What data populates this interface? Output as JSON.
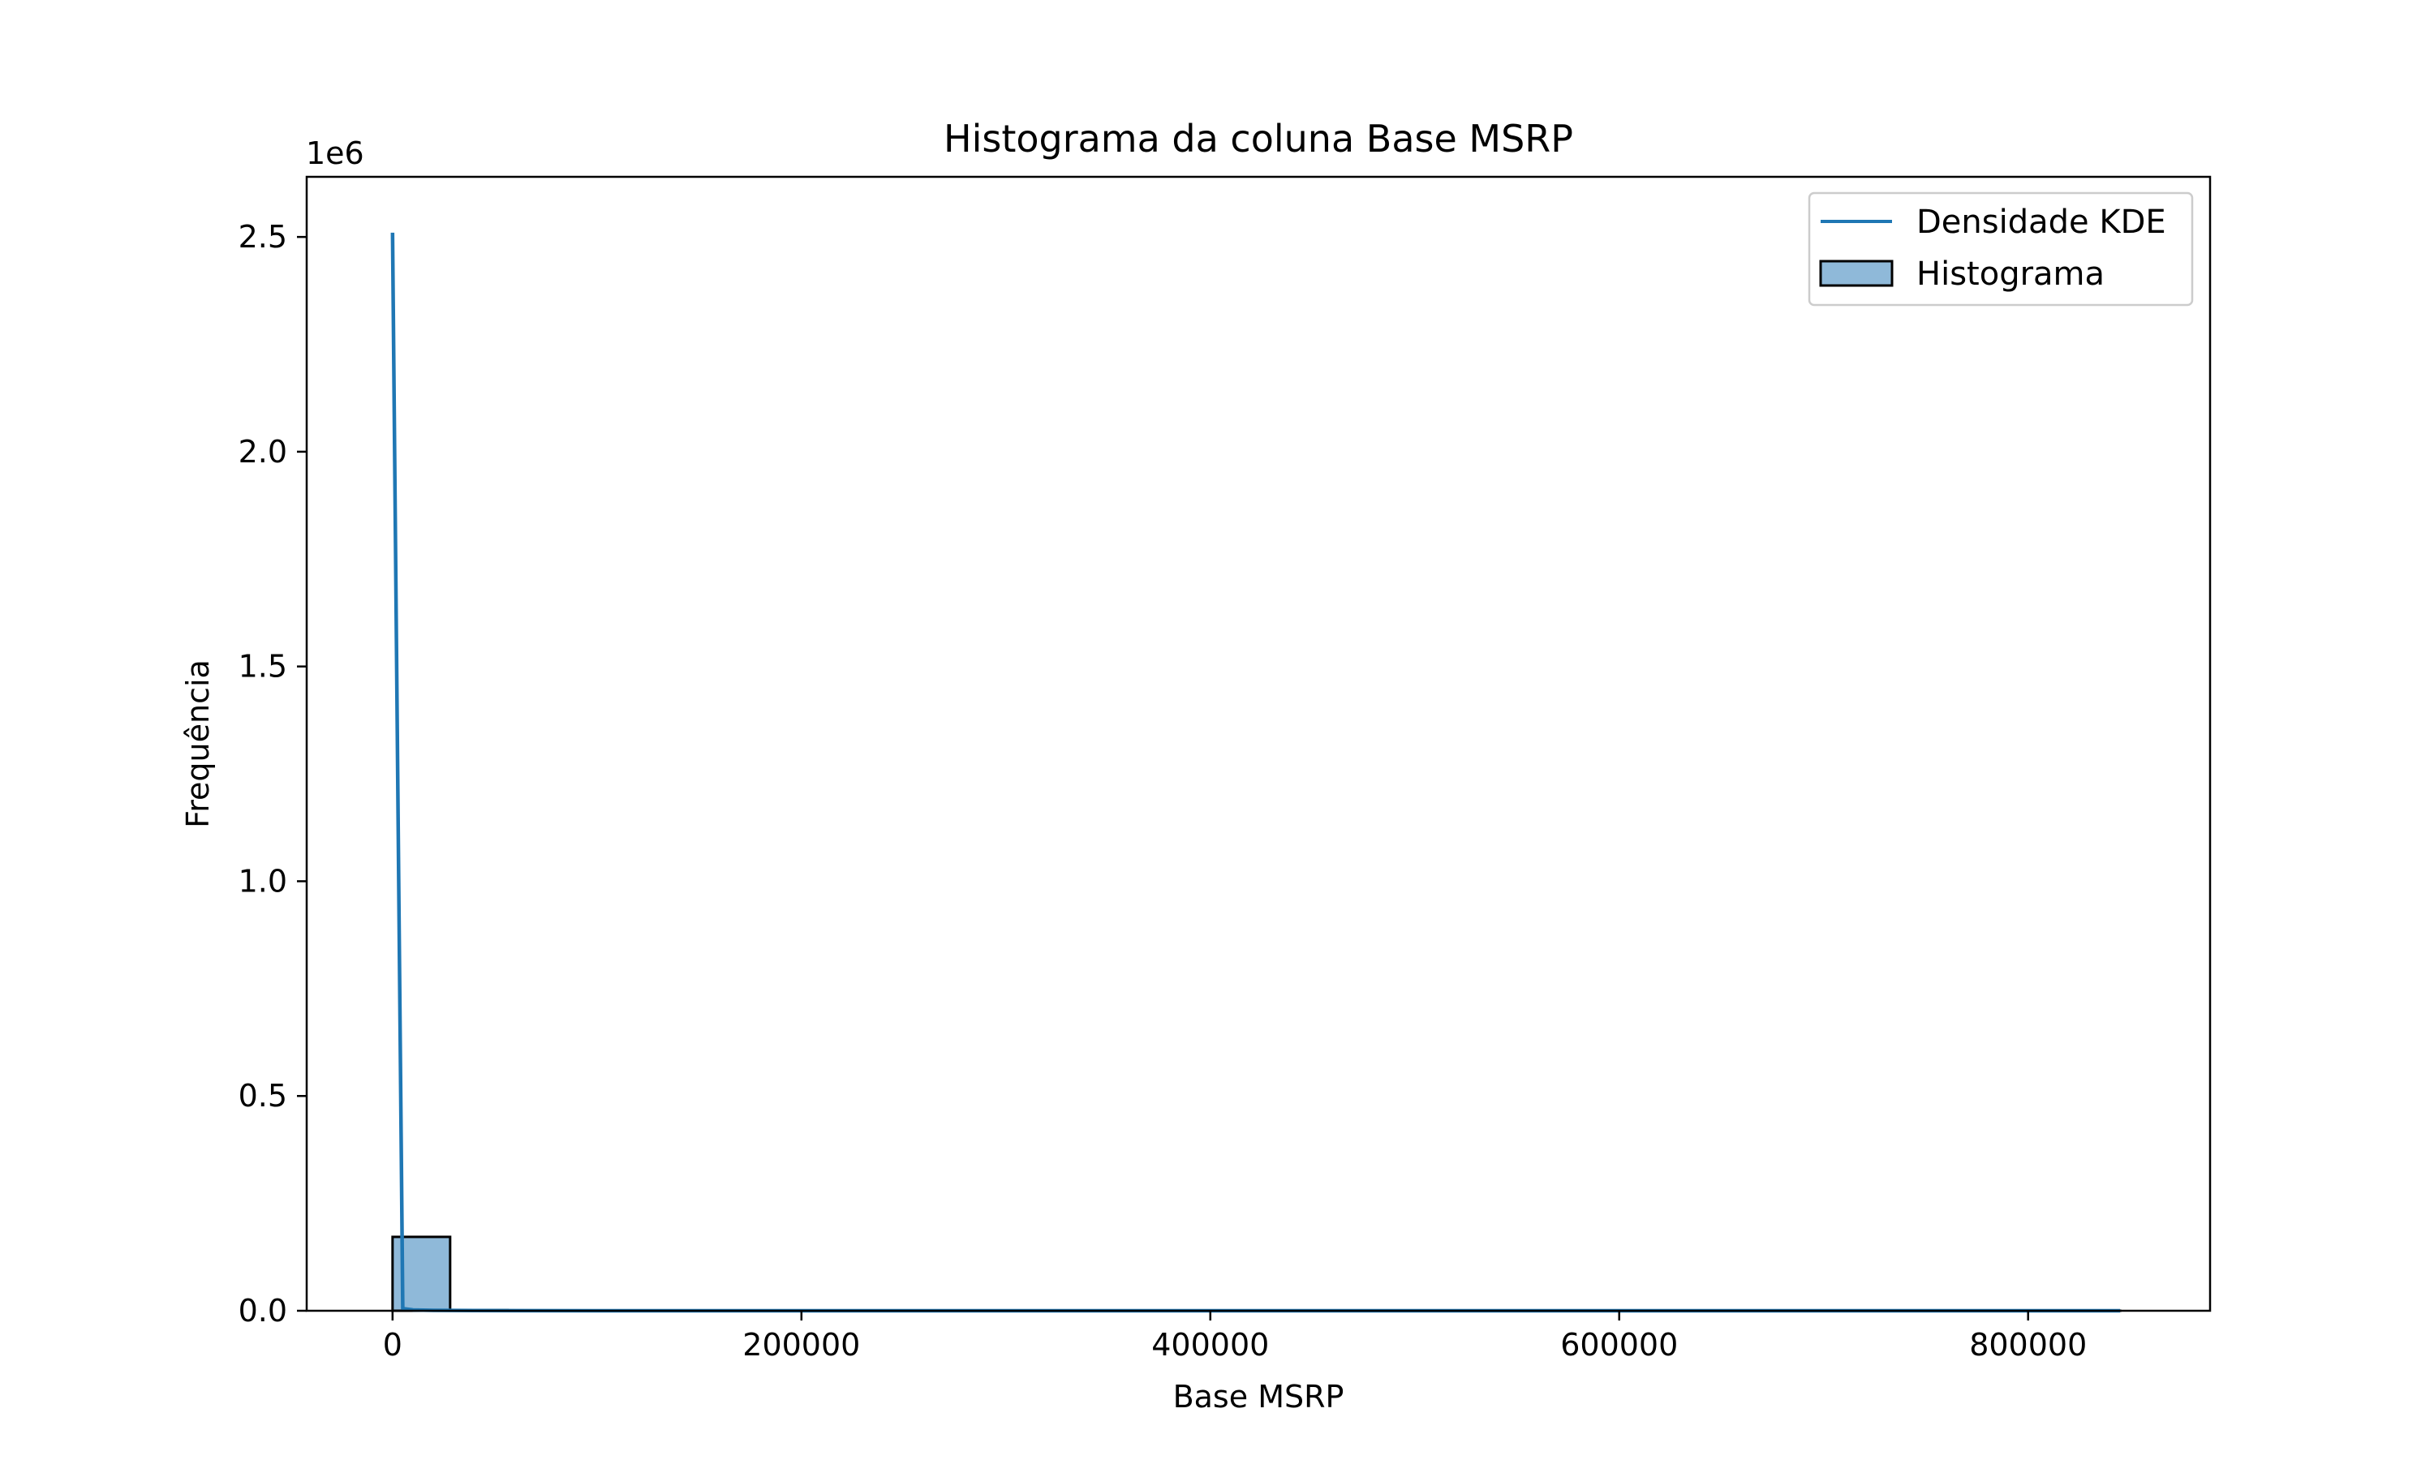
{
  "chart_data": {
    "type": "bar",
    "title": "Histograma da coluna Base MSRP",
    "xlabel": "Base MSRP",
    "ylabel": "Frequência",
    "y_offset_label": "1e6",
    "xlim": [
      -42000,
      889000
    ],
    "ylim": [
      0,
      2640000
    ],
    "x_ticks": [
      0,
      200000,
      400000,
      600000,
      800000
    ],
    "x_tick_labels": [
      "0",
      "200000",
      "400000",
      "600000",
      "800000"
    ],
    "y_ticks": [
      0,
      500000,
      1000000,
      1500000,
      2000000,
      2500000
    ],
    "y_tick_labels": [
      "0.0",
      "0.5",
      "1.0",
      "1.5",
      "2.0",
      "2.5"
    ],
    "grid": false,
    "legend_position": "upper right",
    "series": [
      {
        "name": "Densidade KDE",
        "type": "line",
        "color": "#1f77b4",
        "x": [
          0,
          5000,
          10000,
          20000,
          40000,
          60000,
          100000,
          200000,
          400000,
          600000,
          845000
        ],
        "y": [
          2510000,
          5000,
          2000,
          1000,
          500,
          300,
          100,
          50,
          20,
          10,
          0
        ]
      },
      {
        "name": "Histograma",
        "type": "bar",
        "color": "#8fb9d9",
        "edge_color": "#000000",
        "bin_edges": [
          0,
          28167,
          56333,
          84500,
          112667,
          140833,
          169000,
          197167,
          225333,
          253500,
          281667,
          309833,
          338000,
          366167,
          394333,
          422500,
          450667,
          478833,
          507000,
          535167,
          563333,
          591500,
          619667,
          647833,
          676000,
          704167,
          732333,
          760500,
          788667,
          816833,
          845000
        ],
        "counts": [
          172000,
          1500,
          800,
          300,
          100,
          50,
          20,
          10,
          10,
          5,
          5,
          0,
          0,
          0,
          0,
          0,
          0,
          0,
          0,
          0,
          0,
          0,
          0,
          0,
          0,
          0,
          0,
          0,
          0,
          1
        ]
      }
    ]
  }
}
